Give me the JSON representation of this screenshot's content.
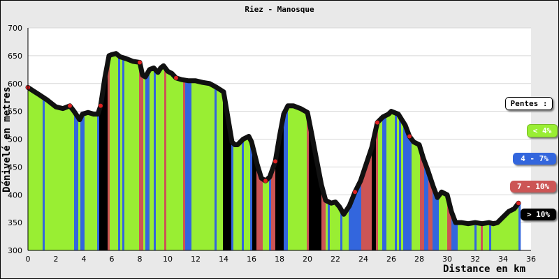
{
  "chart_data": {
    "type": "area",
    "title": "Riez - Manosque",
    "xlabel": "Distance en km",
    "ylabel": "Dénivelé en metres",
    "xlim": [
      0,
      36
    ],
    "ylim": [
      300,
      700
    ],
    "xticks": [
      0,
      2,
      4,
      6,
      8,
      10,
      12,
      14,
      16,
      18,
      20,
      22,
      24,
      26,
      28,
      30,
      32,
      34,
      36
    ],
    "yticks": [
      300,
      350,
      400,
      450,
      500,
      550,
      600,
      650,
      700
    ],
    "grid": true,
    "legend_title": "Pentes :",
    "legend": [
      {
        "label": "< 4%",
        "color": "#99ee33"
      },
      {
        "label": "4 - 7%",
        "color": "#3366dd"
      },
      {
        "label": "7 - 10%",
        "color": "#cc5555"
      },
      {
        "label": "> 10%",
        "color": "#000000"
      }
    ],
    "series": [
      {
        "x": [
          0,
          0.3,
          0.8,
          1.4,
          2.0,
          2.5,
          3.0,
          3.3,
          3.7,
          3.9,
          4.3,
          4.7,
          5.0,
          5.2,
          5.5,
          5.8,
          6.0,
          6.3,
          6.6,
          7.0,
          7.5,
          8.0,
          8.2,
          8.4,
          8.7,
          9.0,
          9.3,
          9.5,
          9.7,
          10.0,
          10.3,
          10.6,
          11.0,
          11.5,
          12.0,
          12.5,
          13.0,
          13.5,
          14.0,
          14.3,
          14.6,
          14.8,
          15.0,
          15.4,
          15.8,
          16.0,
          16.4,
          16.7,
          17.0,
          17.3,
          17.7,
          18.0,
          18.3,
          18.6,
          19.0,
          19.5,
          20.0,
          20.3,
          20.6,
          21.0,
          21.3,
          21.7,
          22.0,
          22.3,
          22.6,
          23.0,
          23.4,
          23.8,
          24.2,
          24.6,
          25.0,
          25.4,
          25.8,
          26.0,
          26.5,
          27.0,
          27.3,
          27.6,
          28.0,
          28.3,
          28.6,
          29.0,
          29.3,
          29.6,
          30.0,
          30.3,
          30.6,
          31.0,
          31.5,
          32.0,
          32.5,
          33.0,
          33.3,
          33.6,
          34.0,
          34.4,
          34.8,
          35.1
        ],
        "y": [
          593,
          588,
          580,
          570,
          558,
          555,
          560,
          550,
          535,
          545,
          548,
          545,
          545,
          560,
          610,
          650,
          652,
          654,
          648,
          645,
          640,
          638,
          615,
          612,
          625,
          628,
          620,
          628,
          632,
          622,
          618,
          610,
          607,
          605,
          605,
          602,
          600,
          593,
          585,
          540,
          495,
          490,
          490,
          500,
          505,
          495,
          455,
          430,
          425,
          432,
          460,
          505,
          545,
          560,
          560,
          555,
          548,
          510,
          470,
          418,
          390,
          385,
          387,
          378,
          365,
          380,
          405,
          425,
          455,
          485,
          530,
          540,
          545,
          550,
          545,
          525,
          505,
          495,
          490,
          465,
          445,
          415,
          395,
          405,
          400,
          370,
          350,
          350,
          348,
          350,
          348,
          350,
          348,
          350,
          360,
          370,
          375,
          385
        ]
      }
    ]
  }
}
